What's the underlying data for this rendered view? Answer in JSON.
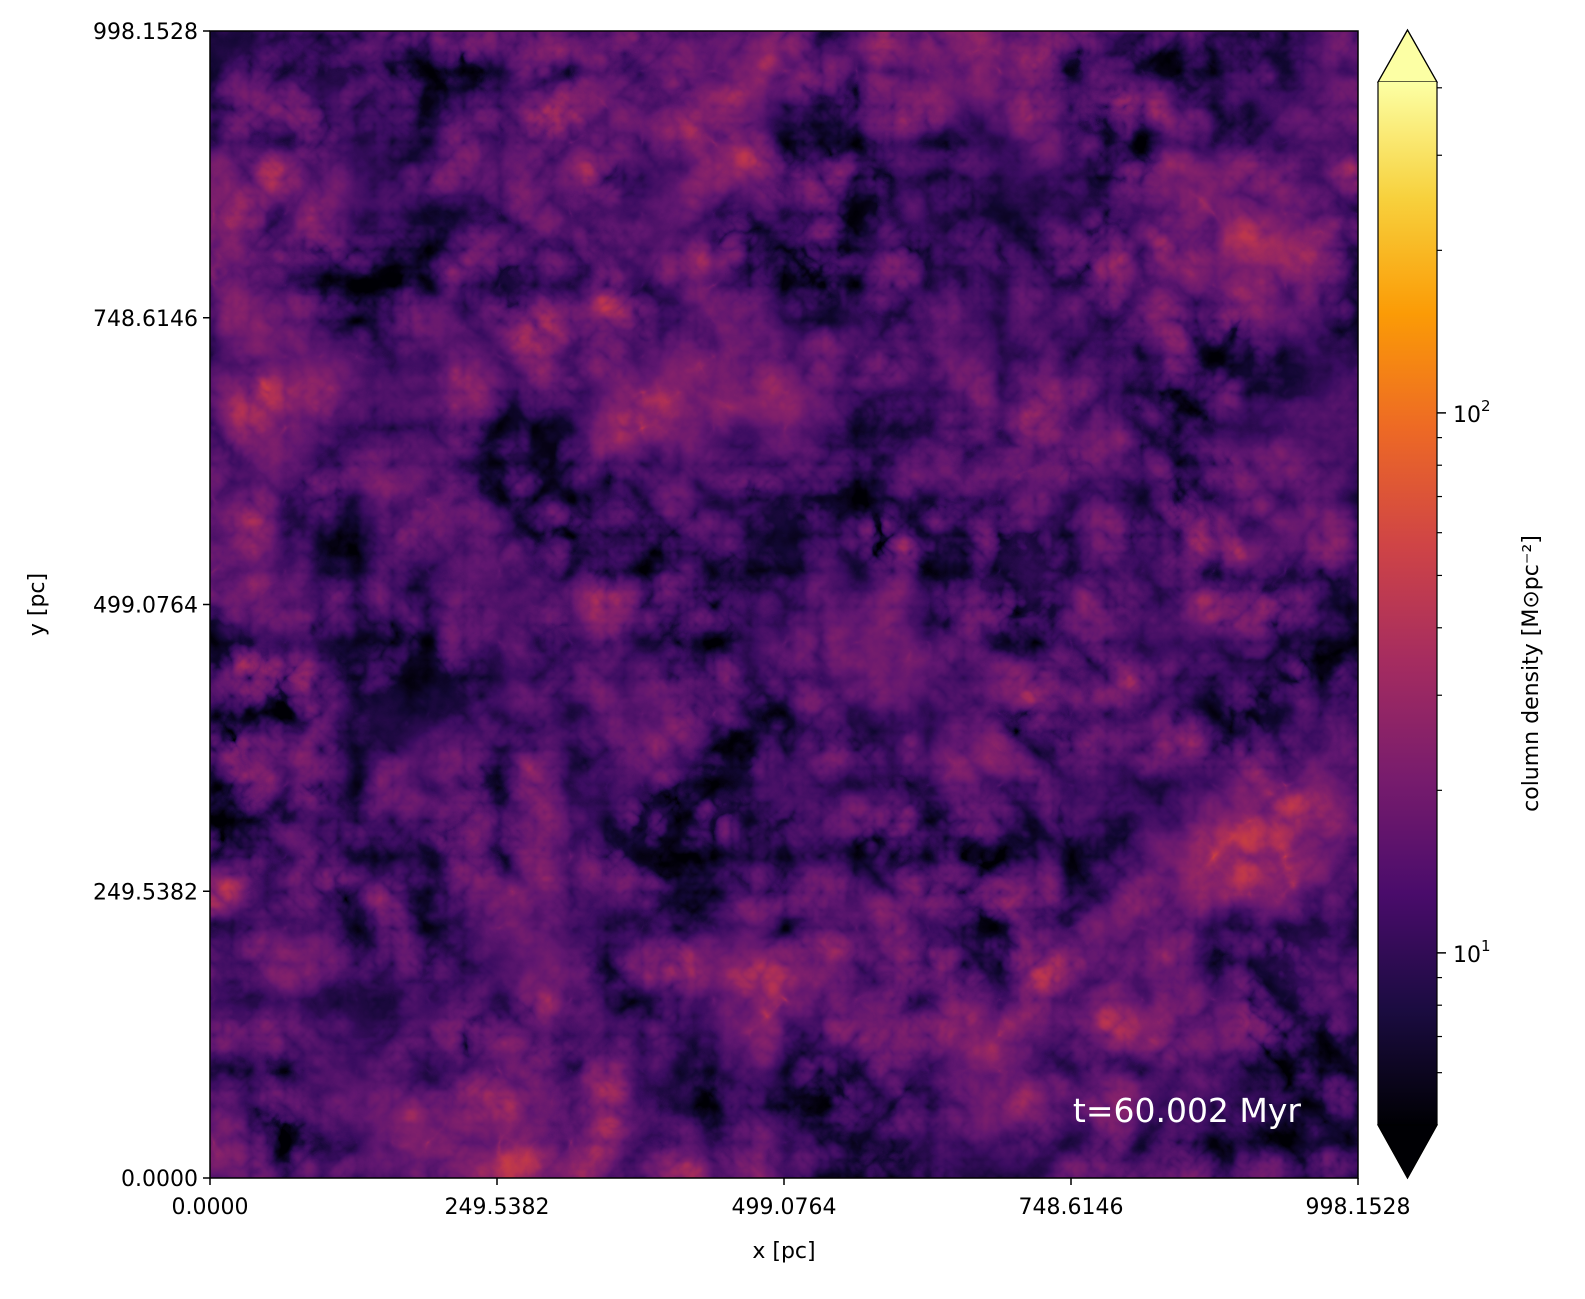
{
  "chart_data": {
    "type": "heatmap",
    "title": "",
    "xlabel": "x [pc]",
    "ylabel": "y [pc]",
    "xlim": [
      0.0,
      998.1528
    ],
    "ylim": [
      0.0,
      998.1528
    ],
    "x_ticks": [
      "0.0000",
      "249.5382",
      "499.0764",
      "748.6146",
      "998.1528"
    ],
    "y_ticks": [
      "0.0000",
      "249.5382",
      "499.0764",
      "748.6146",
      "998.1528"
    ],
    "x_tick_values": [
      0.0,
      249.5382,
      499.0764,
      748.6146,
      998.1528
    ],
    "y_tick_values": [
      0.0,
      249.5382,
      499.0764,
      748.6146,
      998.1528
    ],
    "annotation": "t=60.002 Myr",
    "colormap": "inferno",
    "colorbar": {
      "label": "column density [M⊙pc⁻²]",
      "scale": "log",
      "range": [
        4.8,
        410
      ],
      "extend": "both",
      "major_ticks": [
        {
          "value": 10,
          "label_base": "10",
          "label_exp": "1"
        },
        {
          "value": 100,
          "label_base": "10",
          "label_exp": "2"
        }
      ],
      "minor_ticks": [
        6,
        7,
        8,
        9,
        20,
        30,
        40,
        50,
        60,
        70,
        80,
        90,
        200,
        300,
        400
      ]
    },
    "colors": [
      "#000004",
      "#1b0c41",
      "#4a0c6b",
      "#781c6d",
      "#a52c60",
      "#cf4446",
      "#ed6925",
      "#fb9b06",
      "#f7d13d",
      "#fcffa4"
    ]
  }
}
